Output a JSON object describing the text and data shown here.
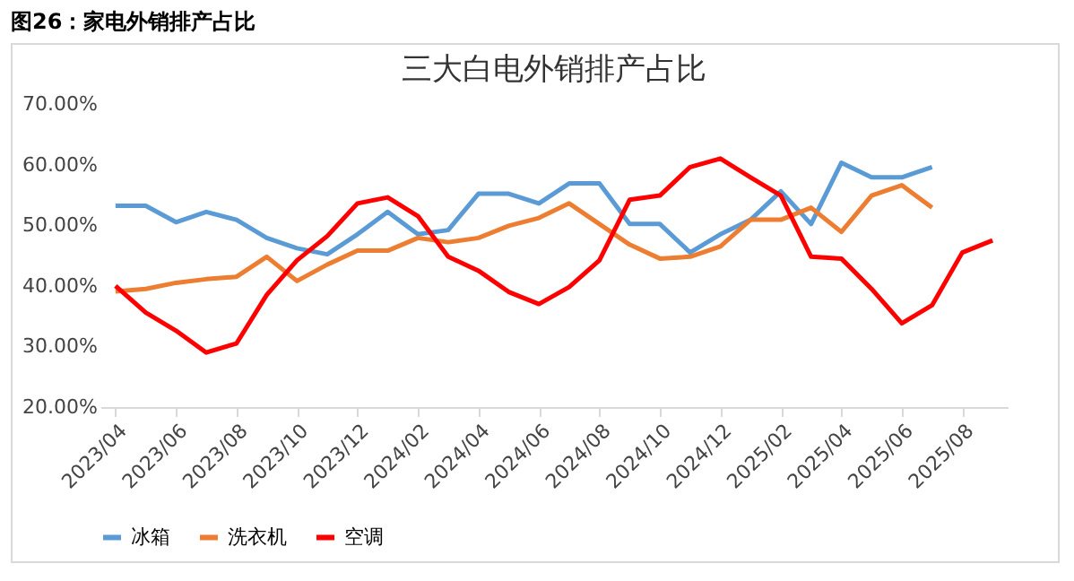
{
  "chart_data": {
    "type": "line",
    "title": "三大白电外销排产占比",
    "annotations": [
      "图26：家电外销排产占比"
    ],
    "categories": [
      "2023/04",
      null,
      "2023/06",
      null,
      "2023/08",
      null,
      "2023/10",
      null,
      "2023/12",
      null,
      "2024/02",
      null,
      "2024/04",
      null,
      "2024/06",
      null,
      "2024/08",
      null,
      "2024/10",
      null,
      "2024/12",
      null,
      "2025/02",
      null,
      "2025/04",
      null,
      "2025/06",
      null,
      "2025/08",
      null
    ],
    "series": [
      {
        "name": "冰箱",
        "color": "#5b9bd5",
        "values": [
          53.2,
          53.2,
          50.5,
          52.2,
          50.9,
          47.9,
          46.2,
          45.2,
          48.5,
          52.2,
          48.5,
          49.2,
          55.2,
          55.2,
          53.6,
          56.9,
          56.9,
          50.2,
          50.2,
          45.5,
          48.5,
          50.9,
          55.6,
          50.2,
          60.3,
          57.9,
          57.9,
          59.6,
          null,
          null
        ]
      },
      {
        "name": "洗衣机",
        "color": "#ed7d31",
        "values": [
          39.1,
          39.5,
          40.5,
          41.1,
          41.5,
          44.8,
          40.8,
          43.5,
          45.8,
          45.8,
          47.9,
          47.2,
          47.9,
          49.9,
          51.2,
          53.6,
          50.2,
          46.8,
          44.5,
          44.8,
          46.5,
          50.9,
          50.9,
          52.9,
          48.9,
          54.9,
          56.6,
          52.9,
          null,
          null
        ]
      },
      {
        "name": "空调",
        "color": "#ff0000",
        "values": [
          40.0,
          35.6,
          32.6,
          29.0,
          30.5,
          38.5,
          44.2,
          48.2,
          53.6,
          54.6,
          51.5,
          44.8,
          42.5,
          39.0,
          37.0,
          39.8,
          44.2,
          54.2,
          54.9,
          59.6,
          61.0,
          57.9,
          54.9,
          44.8,
          44.5,
          39.5,
          33.8,
          36.8,
          45.5,
          47.5
        ]
      }
    ],
    "ylim": [
      20,
      70
    ],
    "yticks": [
      {
        "value": 20,
        "label": "20.00%"
      },
      {
        "value": 30,
        "label": "30.00%"
      },
      {
        "value": 40,
        "label": "40.00%"
      },
      {
        "value": 50,
        "label": "50.00%"
      },
      {
        "value": 60,
        "label": "60.00%"
      },
      {
        "value": 70,
        "label": "70.00%"
      }
    ],
    "grid": false,
    "legend": "bottom",
    "line_style": "solid"
  }
}
